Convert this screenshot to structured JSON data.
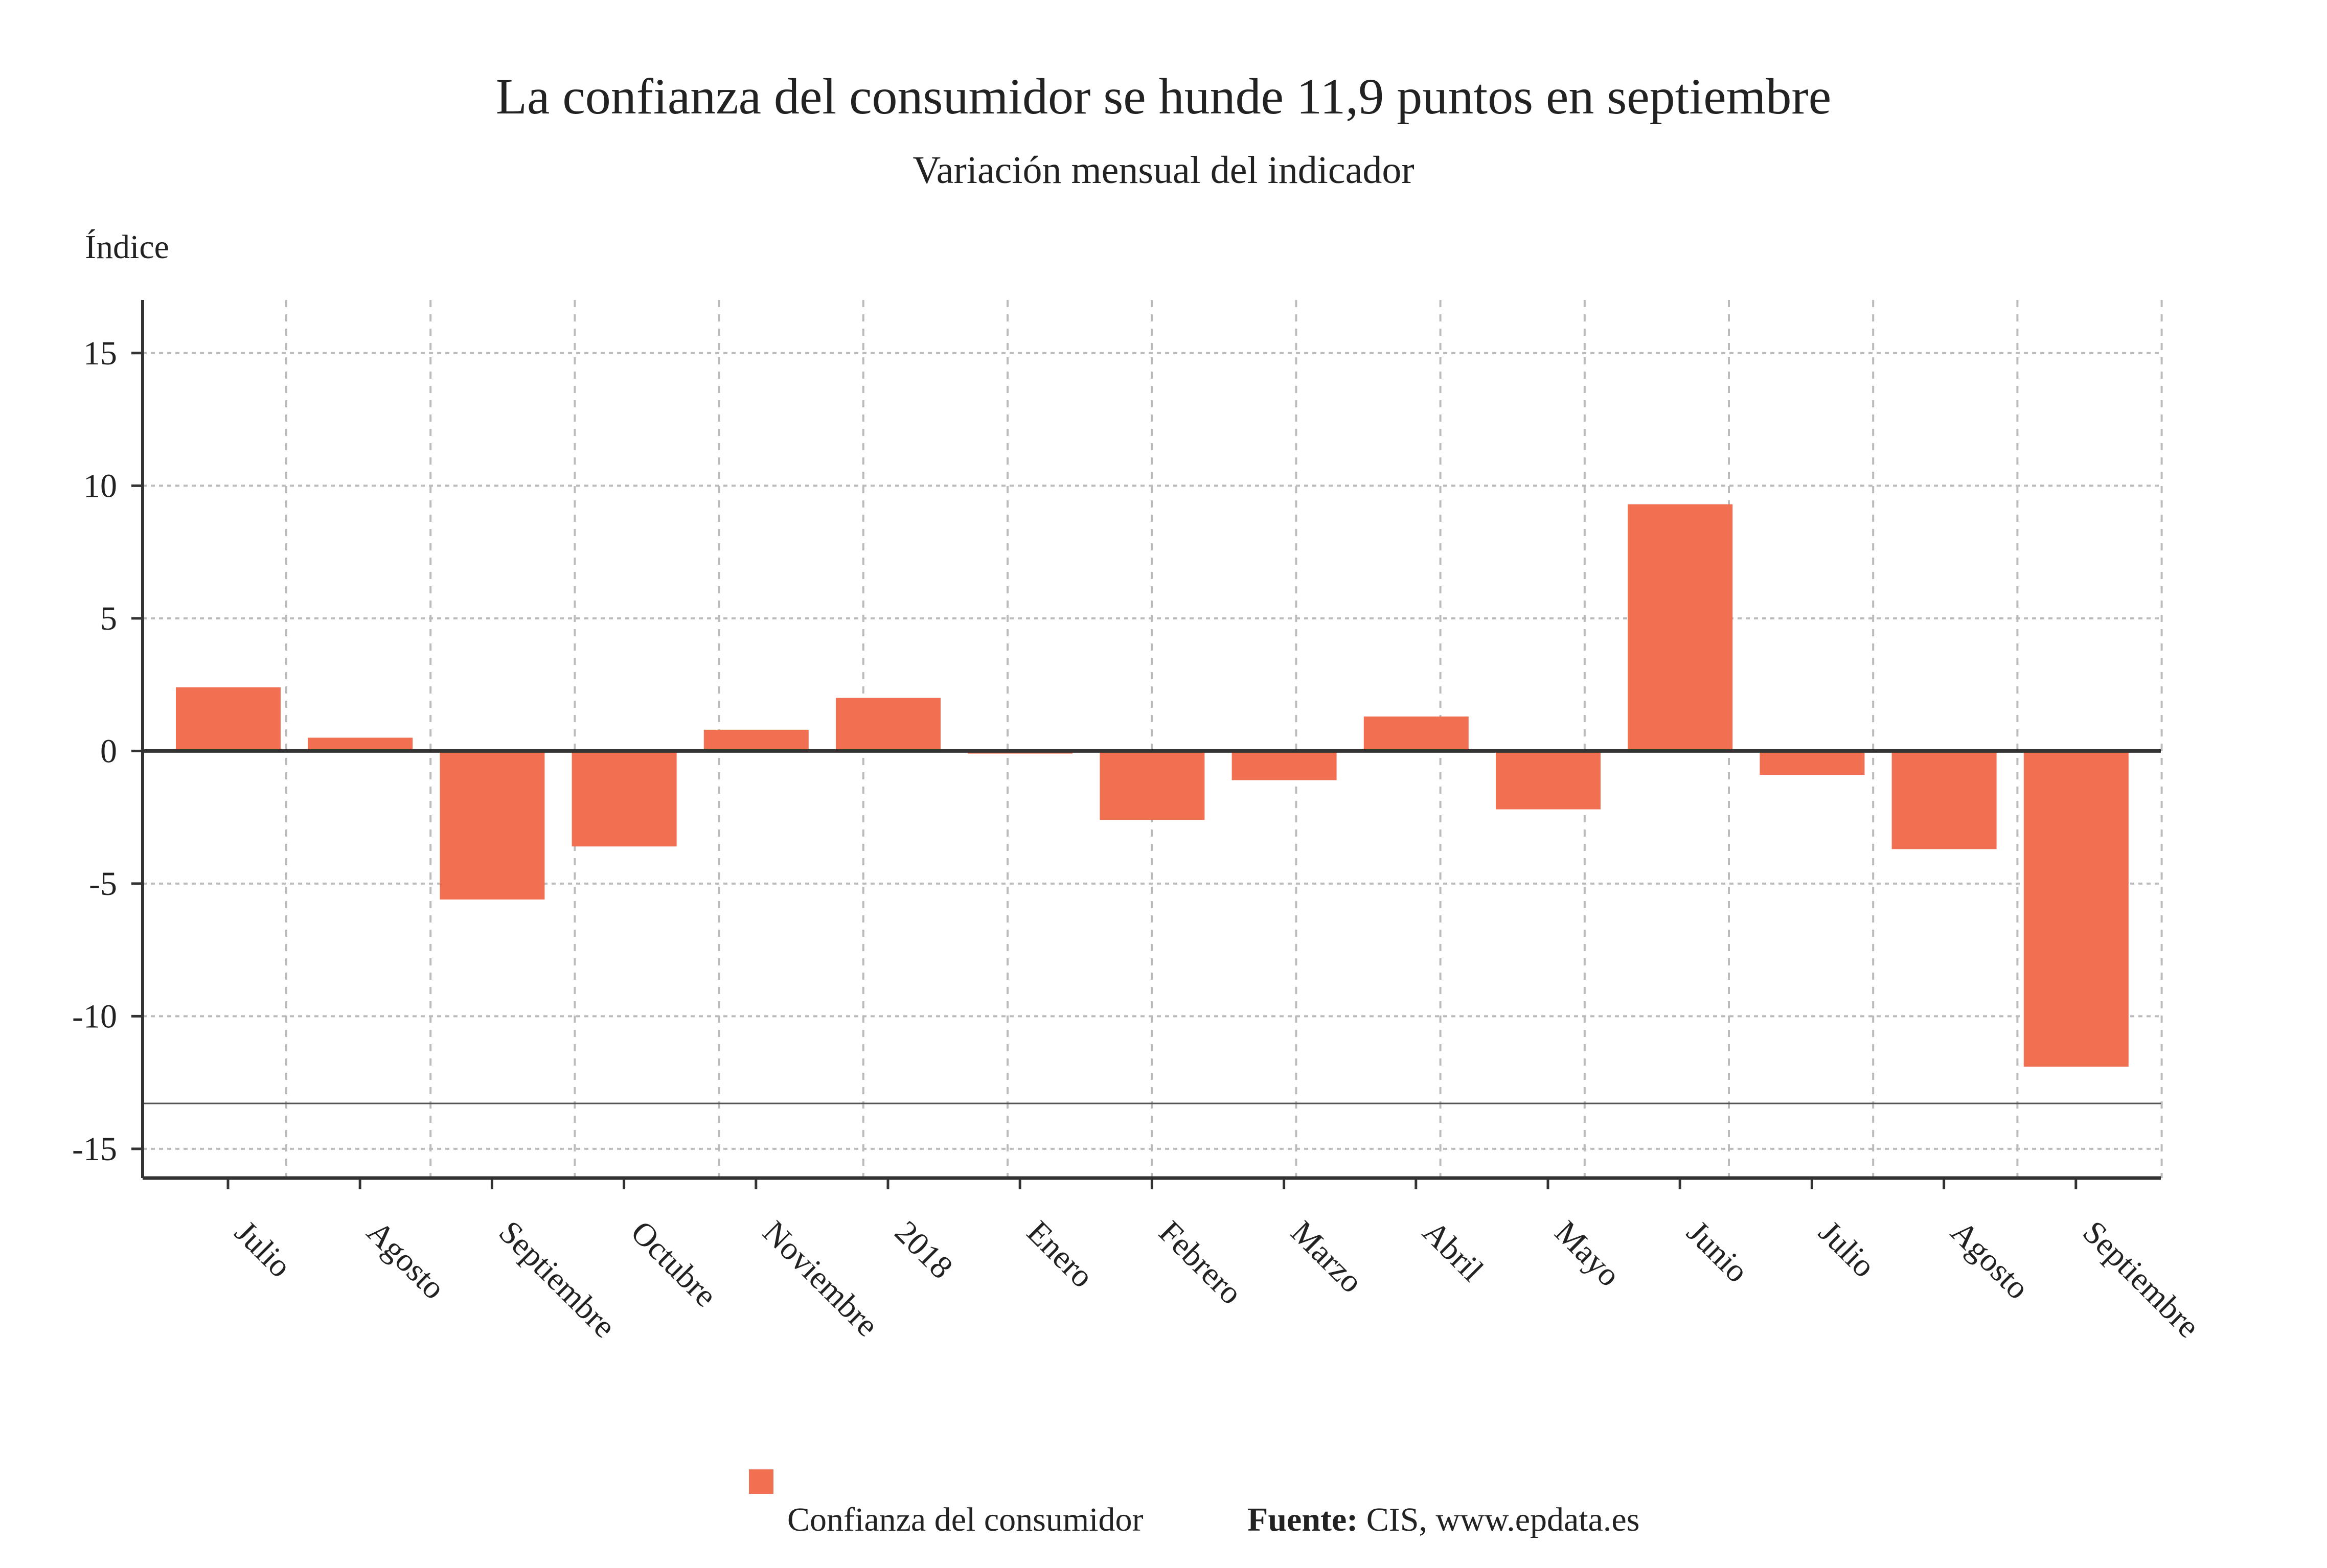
{
  "chart_data": {
    "type": "bar",
    "title": "La confianza del consumidor se hunde 11,9 puntos en septiembre",
    "subtitle": "Variación mensual del indicador",
    "ylabel": "Índice",
    "xlabel": "",
    "categories": [
      "Julio",
      "Agosto",
      "Septiembre",
      "Octubre",
      "Noviembre",
      "2018",
      "Enero",
      "Febrero",
      "Marzo",
      "Abril",
      "Mayo",
      "Junio",
      "Julio",
      "Agosto",
      "Septiembre"
    ],
    "series": [
      {
        "name": "Confianza del consumidor",
        "color": "#f17052",
        "values": [
          2.4,
          0.5,
          -5.6,
          -3.6,
          0.8,
          2.0,
          -0.1,
          -2.6,
          -1.1,
          1.3,
          -2.2,
          9.3,
          -0.9,
          -3.7,
          -11.9
        ]
      }
    ],
    "yticks": [
      "15",
      "10",
      "5",
      "0",
      "-5",
      "-10",
      "-15"
    ],
    "ylim": [
      -16.1,
      17
    ],
    "grid": true,
    "legend_position": "bottom"
  },
  "source": {
    "label": "Fuente:",
    "text": " CIS, www.epdata.es"
  }
}
